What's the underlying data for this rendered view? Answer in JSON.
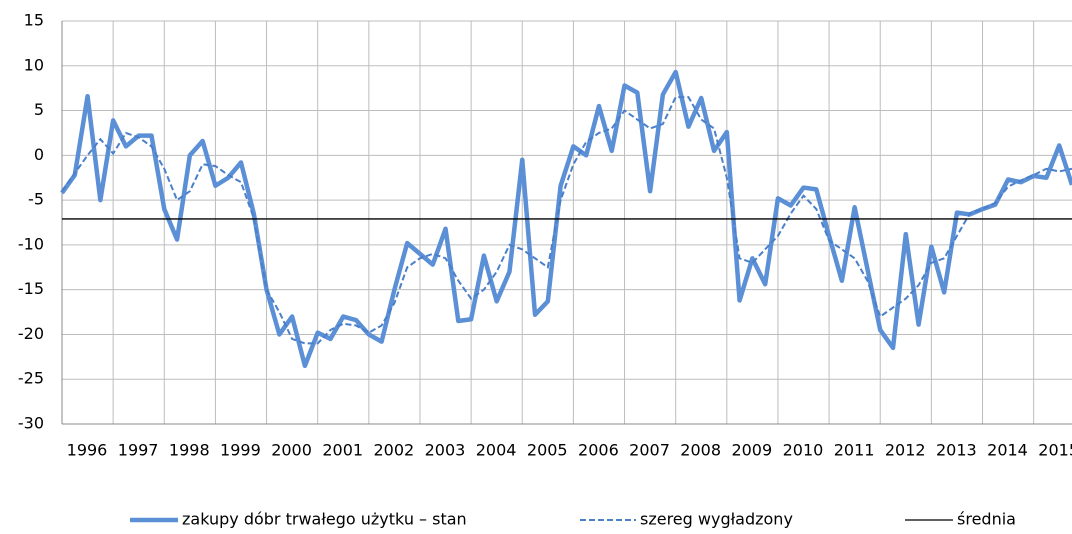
{
  "chart_data": {
    "type": "line",
    "x": [
      1996,
      1996.25,
      1996.5,
      1996.75,
      1997,
      1997.25,
      1997.5,
      1997.75,
      1998,
      1998.25,
      1998.5,
      1998.75,
      1999,
      1999.25,
      1999.5,
      1999.75,
      2000,
      2000.25,
      2000.5,
      2000.75,
      2001,
      2001.25,
      2001.5,
      2001.75,
      2002,
      2002.25,
      2002.5,
      2002.75,
      2003,
      2003.25,
      2003.5,
      2003.75,
      2004,
      2004.25,
      2004.5,
      2004.75,
      2005,
      2005.25,
      2005.5,
      2005.75,
      2006,
      2006.25,
      2006.5,
      2006.75,
      2007,
      2007.25,
      2007.5,
      2007.75,
      2008,
      2008.25,
      2008.5,
      2008.75,
      2009,
      2009.25,
      2009.5,
      2009.75,
      2010,
      2010.25,
      2010.5,
      2010.75,
      2011,
      2011.25,
      2011.5,
      2011.75,
      2012,
      2012.25,
      2012.5,
      2012.75,
      2013,
      2013.25,
      2013.5,
      2013.75,
      2014,
      2014.25,
      2014.5,
      2014.75,
      2015,
      2015.25,
      2015.5,
      2015.75
    ],
    "series": [
      {
        "name": "zakupy dóbr trwałego użytku – stan",
        "color": "#5b8fd6",
        "style": "thick",
        "values": [
          -4.2,
          -2.2,
          6.6,
          -5,
          3.9,
          1,
          2.2,
          2.2,
          -6,
          -9.4,
          0,
          1.6,
          -3.4,
          -2.5,
          -0.8,
          -6.5,
          -15,
          -20,
          -18,
          -23.5,
          -19.8,
          -20.5,
          -18,
          -18.4,
          -20,
          -20.8,
          -15,
          -9.8,
          -11,
          -12.2,
          -8.2,
          -18.5,
          -18.3,
          -11.2,
          -16.3,
          -13,
          -0.5,
          -17.8,
          -16.3,
          -3.4,
          1,
          0,
          5.5,
          0.5,
          7.8,
          7,
          -4,
          6.8,
          9.3,
          3.2,
          6.4,
          0.5,
          2.6,
          -16.2,
          -11.5,
          -14.4,
          -4.8,
          -5.6,
          -3.6,
          -3.8,
          -9,
          -14,
          -5.8,
          -12.7,
          -19.5,
          -21.5,
          -8.8,
          -18.9,
          -10.2,
          -15.3,
          -6.4,
          -6.6,
          -6,
          -5.5,
          -2.7,
          -3,
          -2.3,
          -2.5,
          1.1,
          -3.3
        ]
      },
      {
        "name": "szereg wygładzony",
        "color": "#4a7fc9",
        "style": "dashed",
        "values": [
          -4,
          -2,
          0,
          1.8,
          0.2,
          2.5,
          2,
          1,
          -1.5,
          -5,
          -4,
          -1,
          -1.2,
          -2.2,
          -3,
          -7,
          -15,
          -17.5,
          -20.5,
          -21,
          -21,
          -19.5,
          -18.8,
          -19,
          -19.8,
          -19,
          -16.5,
          -12.5,
          -11.5,
          -11,
          -11.5,
          -14,
          -16,
          -15,
          -13,
          -10,
          -10.5,
          -11.5,
          -12.5,
          -5,
          -1,
          1.5,
          2.5,
          3,
          5,
          4,
          3,
          3.5,
          6.5,
          6.5,
          4,
          3,
          -2.5,
          -11.5,
          -12,
          -10.5,
          -9,
          -6.5,
          -4.5,
          -6,
          -9.5,
          -10.5,
          -11.5,
          -14,
          -18,
          -17,
          -16,
          -14.5,
          -12,
          -11.5,
          -9,
          -6.5,
          -6,
          -5.3,
          -3.5,
          -2.8,
          -2.2,
          -1.5,
          -1.8,
          -1.5
        ]
      },
      {
        "name": "średnia",
        "color": "#000000",
        "style": "constant",
        "value": -7.1
      }
    ],
    "xlim": [
      1996,
      2015.75
    ],
    "xticks": [
      1996,
      1997,
      1998,
      1999,
      2000,
      2001,
      2002,
      2003,
      2004,
      2005,
      2006,
      2007,
      2008,
      2009,
      2010,
      2011,
      2012,
      2013,
      2014,
      2015
    ],
    "ylim": [
      -30,
      15
    ],
    "yticks": [
      -30,
      -25,
      -20,
      -15,
      -10,
      -5,
      0,
      5,
      10,
      15
    ],
    "grid": true,
    "legend": "bottom"
  }
}
